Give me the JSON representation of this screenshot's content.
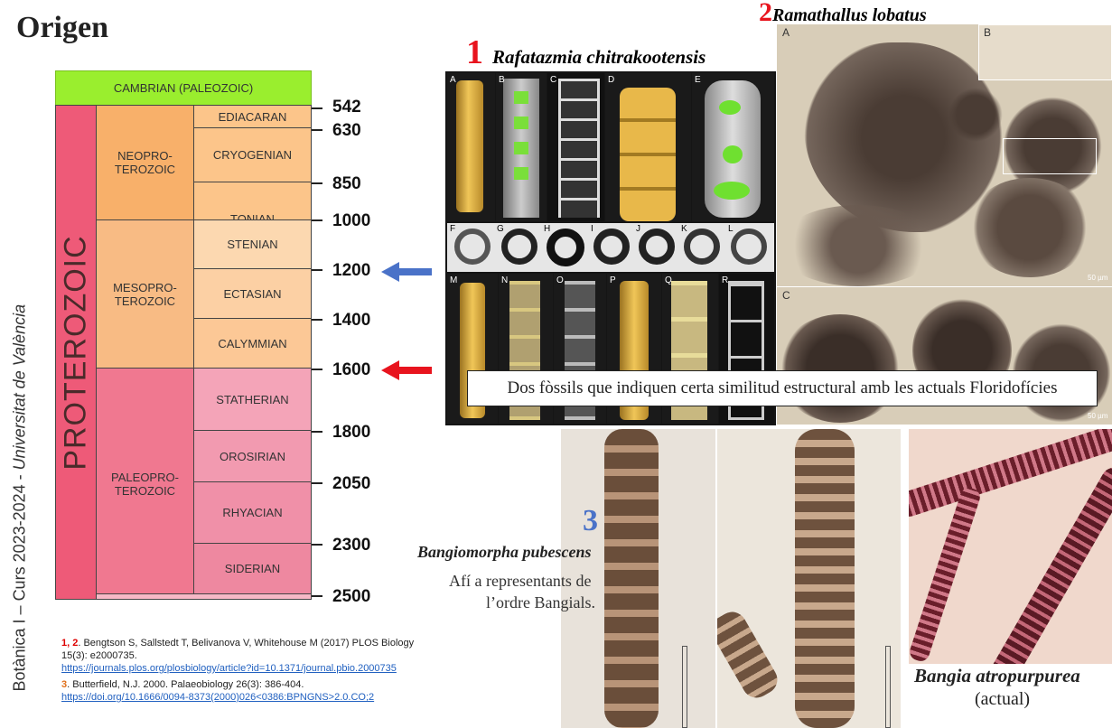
{
  "page": {
    "title": "Origen",
    "side_credit": "Botànica I – Curs 2023-2024 - ",
    "side_credit_italic": "Universitat de València"
  },
  "timeline": {
    "cambrian": "CAMBRIAN (PALEOZOIC)",
    "eon": "PROTEROZOIC",
    "eras": [
      {
        "label": "NEOPRO-\nTEROZOIC"
      },
      {
        "label": "MESOPRO-\nTEROZOIC"
      },
      {
        "label": "PALEOPRO-\nTEROZOIC"
      }
    ],
    "periods": [
      "EDIACARAN",
      "CRYOGENIAN",
      "TONIAN",
      "STENIAN",
      "ECTASIAN",
      "CALYMMIAN",
      "STATHERIAN",
      "OROSIRIAN",
      "RHYACIAN",
      "SIDERIAN"
    ],
    "ages": [
      "542",
      "630",
      "850",
      "1000",
      "1200",
      "1400",
      "1600",
      "1800",
      "2050",
      "2300",
      "2500"
    ]
  },
  "fossil1": {
    "number": "1",
    "name": "Rafatazmia chitrakootensis",
    "panel_letters": [
      "A",
      "B",
      "C",
      "D",
      "E",
      "F",
      "G",
      "H",
      "I",
      "J",
      "K",
      "L",
      "M",
      "N",
      "O",
      "P",
      "Q",
      "R"
    ]
  },
  "fossil2": {
    "number": "2",
    "name": "Ramathallus lobatus",
    "panel_letters": [
      "A",
      "B",
      "C"
    ],
    "scale_text": "50 µm"
  },
  "caption": "Dos fòssils que indiquen certa similitud estructural amb les actuals Floridofícies",
  "fossil3": {
    "number": "3",
    "name": "Bangiomorpha pubescens",
    "desc_line1": "Afí a representants de",
    "desc_line2": "l’ordre Bangials."
  },
  "modern": {
    "name": "Bangia atropurpurea",
    "note": "(actual)"
  },
  "refs": {
    "r1_nums": "1, 2",
    "r1_text": ". Bengtson S, Sallstedt T, Belivanova V, Whitehouse M (2017) PLOS Biology 15(3): e2000735.",
    "r1_link": "https://journals.plos.org/plosbiology/article?id=10.1371/journal.pbio.2000735",
    "r2_num": "3",
    "r2_text": ". Butterfield, N.J. 2000. Palaeobiology 26(3): 386-404.",
    "r2_link": "https://doi.org/10.1666/0094-8373(2000)026<0386:BPNGNS>2.0.CO;2"
  },
  "colors": {
    "cambrian": "#9aee2e",
    "proterozoic": "#ee5a78",
    "neo": "#f8b06a",
    "meso": "#f8bb84",
    "paleo": "#f07890",
    "blue_arrow": "#4a72c8",
    "red_arrow": "#e8141e"
  }
}
